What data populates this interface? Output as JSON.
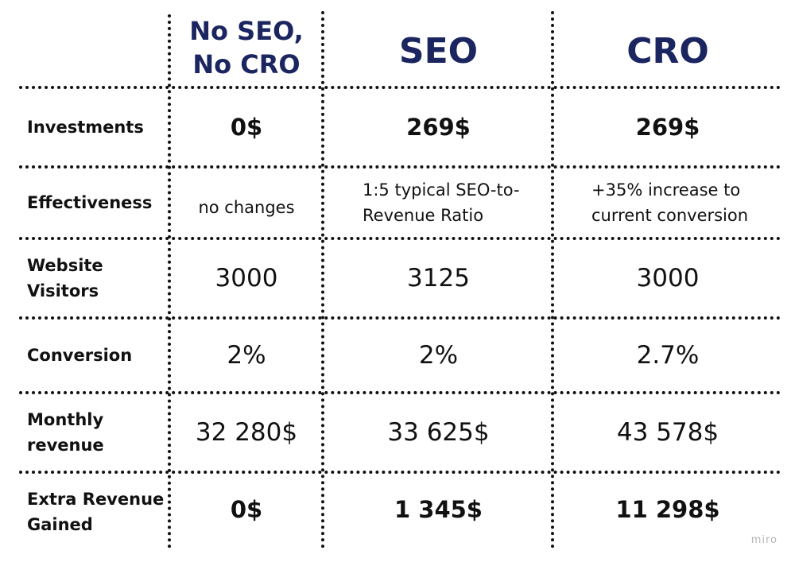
{
  "table": {
    "columns": [
      "No SEO,\nNo CRO",
      "SEO",
      "CRO"
    ],
    "rows": [
      {
        "label": "Investments",
        "values": [
          "0$",
          "269$",
          "269$"
        ]
      },
      {
        "label": "Effectiveness",
        "values": [
          "no changes",
          "1:5 typical SEO-to-\nRevenue Ratio",
          "+35% increase to\ncurrent conversion"
        ]
      },
      {
        "label": "Website\nVisitors",
        "values": [
          "3000",
          "3125",
          "3000"
        ]
      },
      {
        "label": "Conversion",
        "values": [
          "2%",
          "2%",
          "2.7%"
        ]
      },
      {
        "label": "Monthly\nrevenue",
        "values": [
          "32 280$",
          "33 625$",
          "43 578$"
        ]
      },
      {
        "label": "Extra Revenue\nGained",
        "values": [
          "0$",
          "1 345$",
          "11 298$"
        ]
      }
    ]
  },
  "watermark": "miro",
  "colors": {
    "header": "#1b2560",
    "text": "#111111",
    "watermark": "#b5b5b5"
  }
}
